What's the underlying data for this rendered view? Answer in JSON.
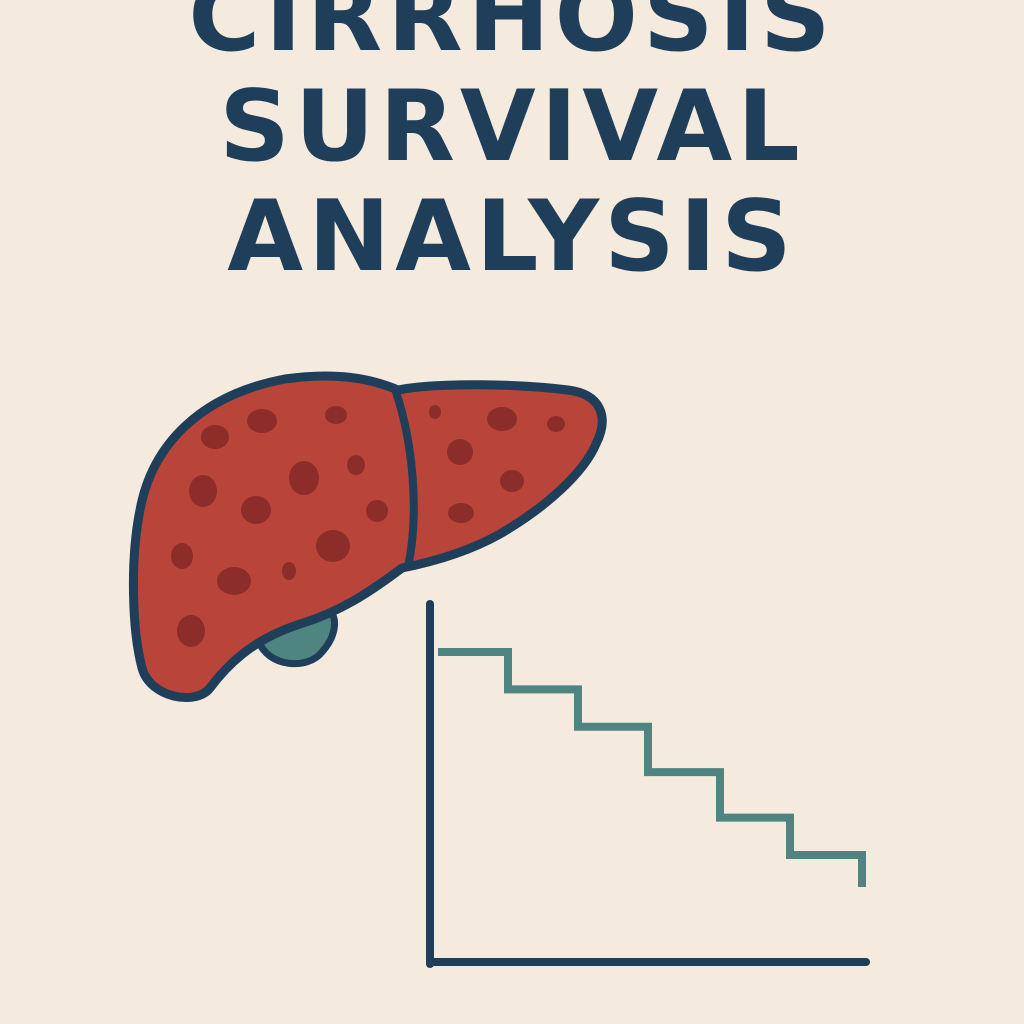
{
  "title": {
    "line1": "CIRRHOSIS",
    "line2": "SURVIVAL",
    "line3": "ANALYSIS"
  },
  "colors": {
    "background": "#f4eadd",
    "ink": "#1e3e5a",
    "liver": "#b8443a",
    "liver_spot": "#8d2d29",
    "gallbladder": "#4e8581",
    "curve": "#4e8581"
  },
  "illustration": {
    "liver_icon": "liver-icon",
    "gallbladder_icon": "gallbladder-icon",
    "curve_type": "kaplan-meier-step-curve",
    "survival_steps": [
      1.0,
      0.86,
      0.72,
      0.55,
      0.38,
      0.24,
      0.12
    ]
  }
}
